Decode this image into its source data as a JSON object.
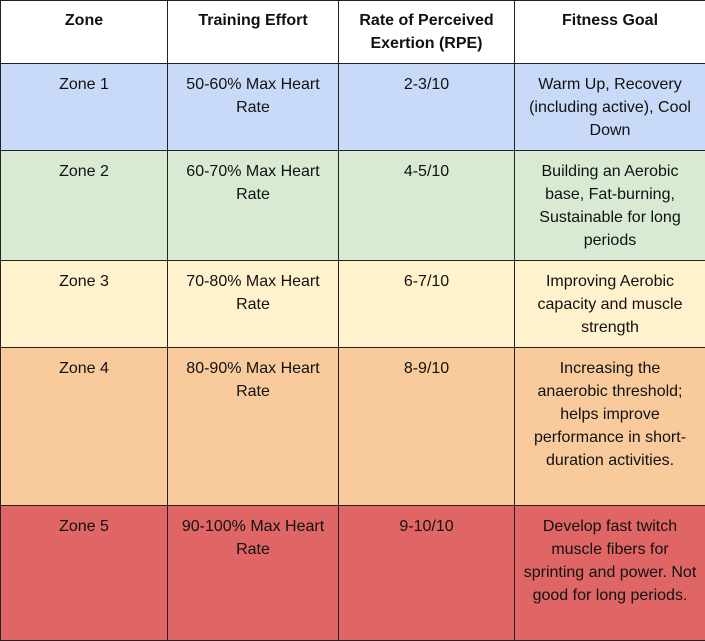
{
  "table": {
    "header": [
      "Zone",
      "Training Effort",
      "Rate of Perceived Exertion (RPE)",
      "Fitness Goal"
    ],
    "rows": [
      [
        "Zone 1",
        "50-60% Max Heart Rate",
        "2-3/10",
        "Warm Up, Recovery (including active), Cool Down"
      ],
      [
        "Zone 2",
        "60-70% Max Heart Rate",
        "4-5/10",
        "Building an Aerobic base, Fat-burning, Sustainable for long periods"
      ],
      [
        "Zone 3",
        "70-80% Max Heart Rate",
        "6-7/10",
        "Improving Aerobic capacity and muscle strength"
      ],
      [
        "Zone 4",
        "80-90% Max Heart Rate",
        "8-9/10",
        "Increasing the anaerobic threshold; helps improve performance in short-duration activities."
      ],
      [
        "Zone 5",
        "90-100% Max Heart Rate",
        "9-10/10",
        "Develop fast twitch muscle fibers for sprinting and power. Not good for long periods."
      ]
    ]
  }
}
